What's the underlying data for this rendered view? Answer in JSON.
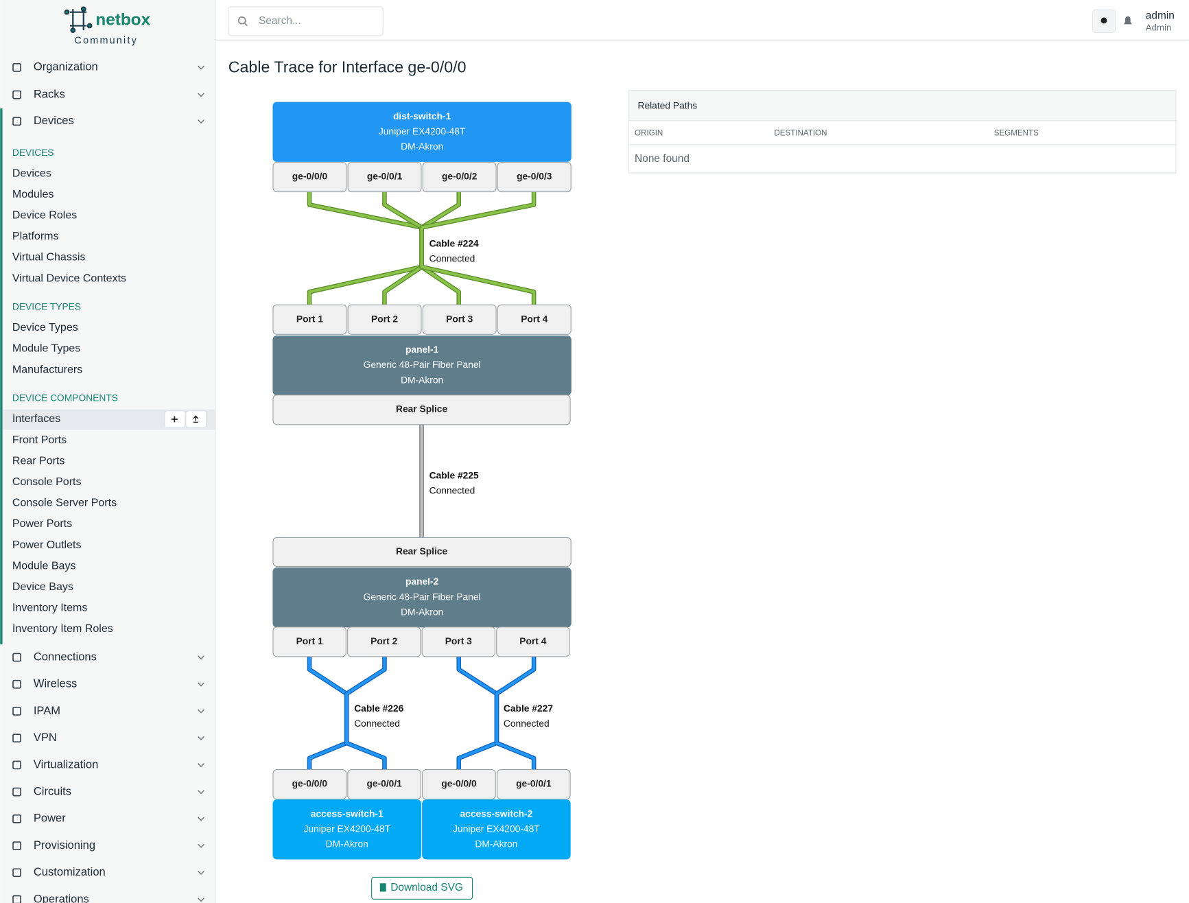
{
  "logo": {
    "name": "netbox",
    "edition": "Community"
  },
  "sidebar": {
    "menu_top": [
      "Organization",
      "Racks",
      "Devices"
    ],
    "sections": [
      {
        "title": "DEVICES",
        "items": [
          "Devices",
          "Modules",
          "Device Roles",
          "Platforms",
          "Virtual Chassis",
          "Virtual Device Contexts"
        ]
      },
      {
        "title": "DEVICE TYPES",
        "items": [
          "Device Types",
          "Module Types",
          "Manufacturers"
        ]
      },
      {
        "title": "DEVICE COMPONENTS",
        "items": [
          "Interfaces",
          "Front Ports",
          "Rear Ports",
          "Console Ports",
          "Console Server Ports",
          "Power Ports",
          "Power Outlets",
          "Module Bays",
          "Device Bays",
          "Inventory Items",
          "Inventory Item Roles"
        ]
      }
    ],
    "menu_bottom": [
      "Connections",
      "Wireless",
      "IPAM",
      "VPN",
      "Virtualization",
      "Circuits",
      "Power",
      "Provisioning",
      "Customization",
      "Operations"
    ]
  },
  "header": {
    "search_placeholder": "Search...",
    "user": "admin",
    "role": "Admin"
  },
  "title": "Cable Trace for Interface ge-0/0/0",
  "trace": {
    "top_device": {
      "name": "dist-switch-1",
      "model": "Juniper EX4200-48T",
      "site": "DM-Akron",
      "ports": [
        "ge-0/0/0",
        "ge-0/0/1",
        "ge-0/0/2",
        "ge-0/0/3"
      ]
    },
    "cable_1": {
      "label": "Cable #224",
      "status": "Connected"
    },
    "panel_1": {
      "front_ports": [
        "Port 1",
        "Port 2",
        "Port 3",
        "Port 4"
      ],
      "name": "panel-1",
      "model": "Generic 48-Pair Fiber Panel",
      "site": "DM-Akron",
      "rear_port": "Rear Splice"
    },
    "cable_2": {
      "label": "Cable #225",
      "status": "Connected"
    },
    "panel_2": {
      "rear_port": "Rear Splice",
      "name": "panel-2",
      "model": "Generic 48-Pair Fiber Panel",
      "site": "DM-Akron",
      "front_ports": [
        "Port 1",
        "Port 2",
        "Port 3",
        "Port 4"
      ]
    },
    "cable_3": {
      "label": "Cable #226",
      "status": "Connected"
    },
    "cable_4": {
      "label": "Cable #227",
      "status": "Connected"
    },
    "bottom_devices": [
      {
        "ports": [
          "ge-0/0/0",
          "ge-0/0/1"
        ],
        "name": "access-switch-1",
        "model": "Juniper EX4200-48T",
        "site": "DM-Akron"
      },
      {
        "ports": [
          "ge-0/0/0",
          "ge-0/0/1"
        ],
        "name": "access-switch-2",
        "model": "Juniper EX4200-48T",
        "site": "DM-Akron"
      }
    ]
  },
  "download_button": "Download SVG",
  "related_paths": {
    "title": "Related Paths",
    "columns": [
      "ORIGIN",
      "DESTINATION",
      "SEGMENTS"
    ],
    "empty": "None found"
  }
}
